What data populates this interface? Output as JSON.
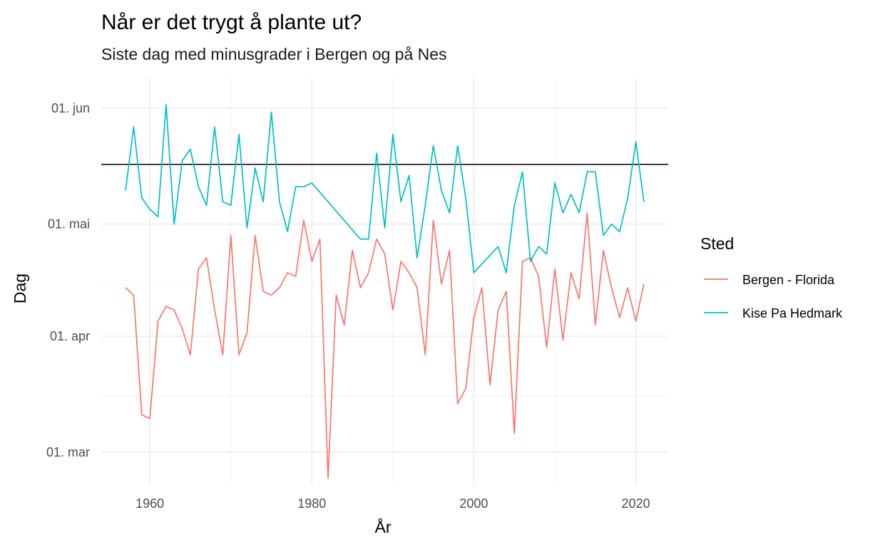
{
  "chart_data": {
    "type": "line",
    "title": "Når er det trygt å plante ut?",
    "subtitle": "Siste dag med minusgrader i Bergen og på Nes",
    "xlabel": "År",
    "ylabel": "Dag",
    "xlim": [
      1954,
      2024
    ],
    "ylim": [
      "2021-02-20",
      "2021-06-09"
    ],
    "x_ticks": [
      1960,
      1980,
      2000,
      2020
    ],
    "y_ticks": [
      {
        "date": "2021-03-01",
        "label": "01. mar"
      },
      {
        "date": "2021-04-01",
        "label": "01. apr"
      },
      {
        "date": "2021-05-01",
        "label": "01. mai"
      },
      {
        "date": "2021-06-01",
        "label": "01. jun"
      }
    ],
    "y_minor_ticks": [
      "2021-03-16",
      "2021-04-16",
      "2021-05-16"
    ],
    "grid": true,
    "hline": "2021-05-17",
    "legend_title": "Sted",
    "legend_position": "right",
    "series": [
      {
        "name": "Bergen - Florida",
        "color": "#F8766D",
        "x": [
          1957,
          1958,
          1959,
          1960,
          1961,
          1962,
          1963,
          1964,
          1965,
          1966,
          1967,
          1968,
          1969,
          1970,
          1971,
          1972,
          1973,
          1974,
          1975,
          1976,
          1977,
          1978,
          1979,
          1980,
          1981,
          1982,
          1983,
          1984,
          1985,
          1986,
          1987,
          1988,
          1989,
          1990,
          1991,
          1992,
          1993,
          1994,
          1995,
          1996,
          1997,
          1998,
          1999,
          2000,
          2001,
          2002,
          2003,
          2004,
          2005,
          2006,
          2007,
          2008,
          2009,
          2010,
          2011,
          2012,
          2013,
          2014,
          2015,
          2016,
          2017,
          2018,
          2019,
          2020,
          2021
        ],
        "y": [
          "2021-04-14",
          "2021-04-12",
          "2021-03-11",
          "2021-03-10",
          "2021-04-05",
          "2021-04-09",
          "2021-04-08",
          "2021-04-03",
          "2021-03-27",
          "2021-04-19",
          "2021-04-22",
          "2021-04-08",
          "2021-03-27",
          "2021-04-28",
          "2021-03-27",
          "2021-04-02",
          "2021-04-28",
          "2021-04-13",
          "2021-04-12",
          "2021-04-14",
          "2021-04-18",
          "2021-04-17",
          "2021-05-02",
          "2021-04-21",
          "2021-04-27",
          "2021-02-22",
          "2021-04-12",
          "2021-04-04",
          "2021-04-24",
          "2021-04-14",
          "2021-04-18",
          "2021-04-27",
          "2021-04-23",
          "2021-04-08",
          "2021-04-21",
          "2021-04-18",
          "2021-04-14",
          "2021-03-27",
          "2021-05-02",
          "2021-04-15",
          "2021-04-24",
          "2021-03-14",
          "2021-03-18",
          "2021-04-06",
          "2021-04-14",
          "2021-03-19",
          "2021-04-08",
          "2021-04-13",
          "2021-03-06",
          "2021-04-21",
          "2021-04-22",
          "2021-04-17",
          "2021-03-29",
          "2021-04-19",
          "2021-03-31",
          "2021-04-18",
          "2021-04-11",
          "2021-05-04",
          "2021-04-04",
          "2021-04-24",
          "2021-04-14",
          "2021-04-06",
          "2021-04-14",
          "2021-04-05",
          "2021-04-15"
        ]
      },
      {
        "name": "Kise Pa Hedmark",
        "color": "#00BFC4",
        "x": [
          1957,
          1958,
          1959,
          1960,
          1961,
          1962,
          1963,
          1964,
          1965,
          1966,
          1967,
          1968,
          1969,
          1970,
          1971,
          1972,
          1973,
          1974,
          1975,
          1976,
          1977,
          1978,
          1979,
          1980,
          1986,
          1987,
          1988,
          1989,
          1990,
          1991,
          1992,
          1993,
          1994,
          1995,
          1996,
          1997,
          1998,
          1999,
          2000,
          2003,
          2004,
          2005,
          2006,
          2007,
          2008,
          2009,
          2010,
          2011,
          2012,
          2013,
          2014,
          2015,
          2016,
          2017,
          2018,
          2019,
          2020,
          2021
        ],
        "y": [
          "2021-05-10",
          "2021-05-27",
          "2021-05-08",
          "2021-05-05",
          "2021-05-03",
          "2021-06-02",
          "2021-05-01",
          "2021-05-18",
          "2021-05-21",
          "2021-05-11",
          "2021-05-06",
          "2021-05-27",
          "2021-05-07",
          "2021-05-06",
          "2021-05-25",
          "2021-04-30",
          "2021-05-16",
          "2021-05-07",
          "2021-05-31",
          "2021-05-07",
          "2021-04-29",
          "2021-05-11",
          "2021-05-11",
          "2021-05-12",
          "2021-04-27",
          "2021-04-27",
          "2021-05-20",
          "2021-04-30",
          "2021-05-25",
          "2021-05-07",
          "2021-05-14",
          "2021-04-22",
          "2021-05-06",
          "2021-05-22",
          "2021-05-10",
          "2021-05-04",
          "2021-05-22",
          "2021-05-08",
          "2021-04-18",
          "2021-04-25",
          "2021-04-18",
          "2021-05-06",
          "2021-05-15",
          "2021-04-21",
          "2021-04-25",
          "2021-04-23",
          "2021-05-12",
          "2021-05-04",
          "2021-05-09",
          "2021-05-04",
          "2021-05-15",
          "2021-05-15",
          "2021-04-28",
          "2021-05-01",
          "2021-04-29",
          "2021-05-08",
          "2021-05-23",
          "2021-05-07"
        ]
      }
    ]
  }
}
